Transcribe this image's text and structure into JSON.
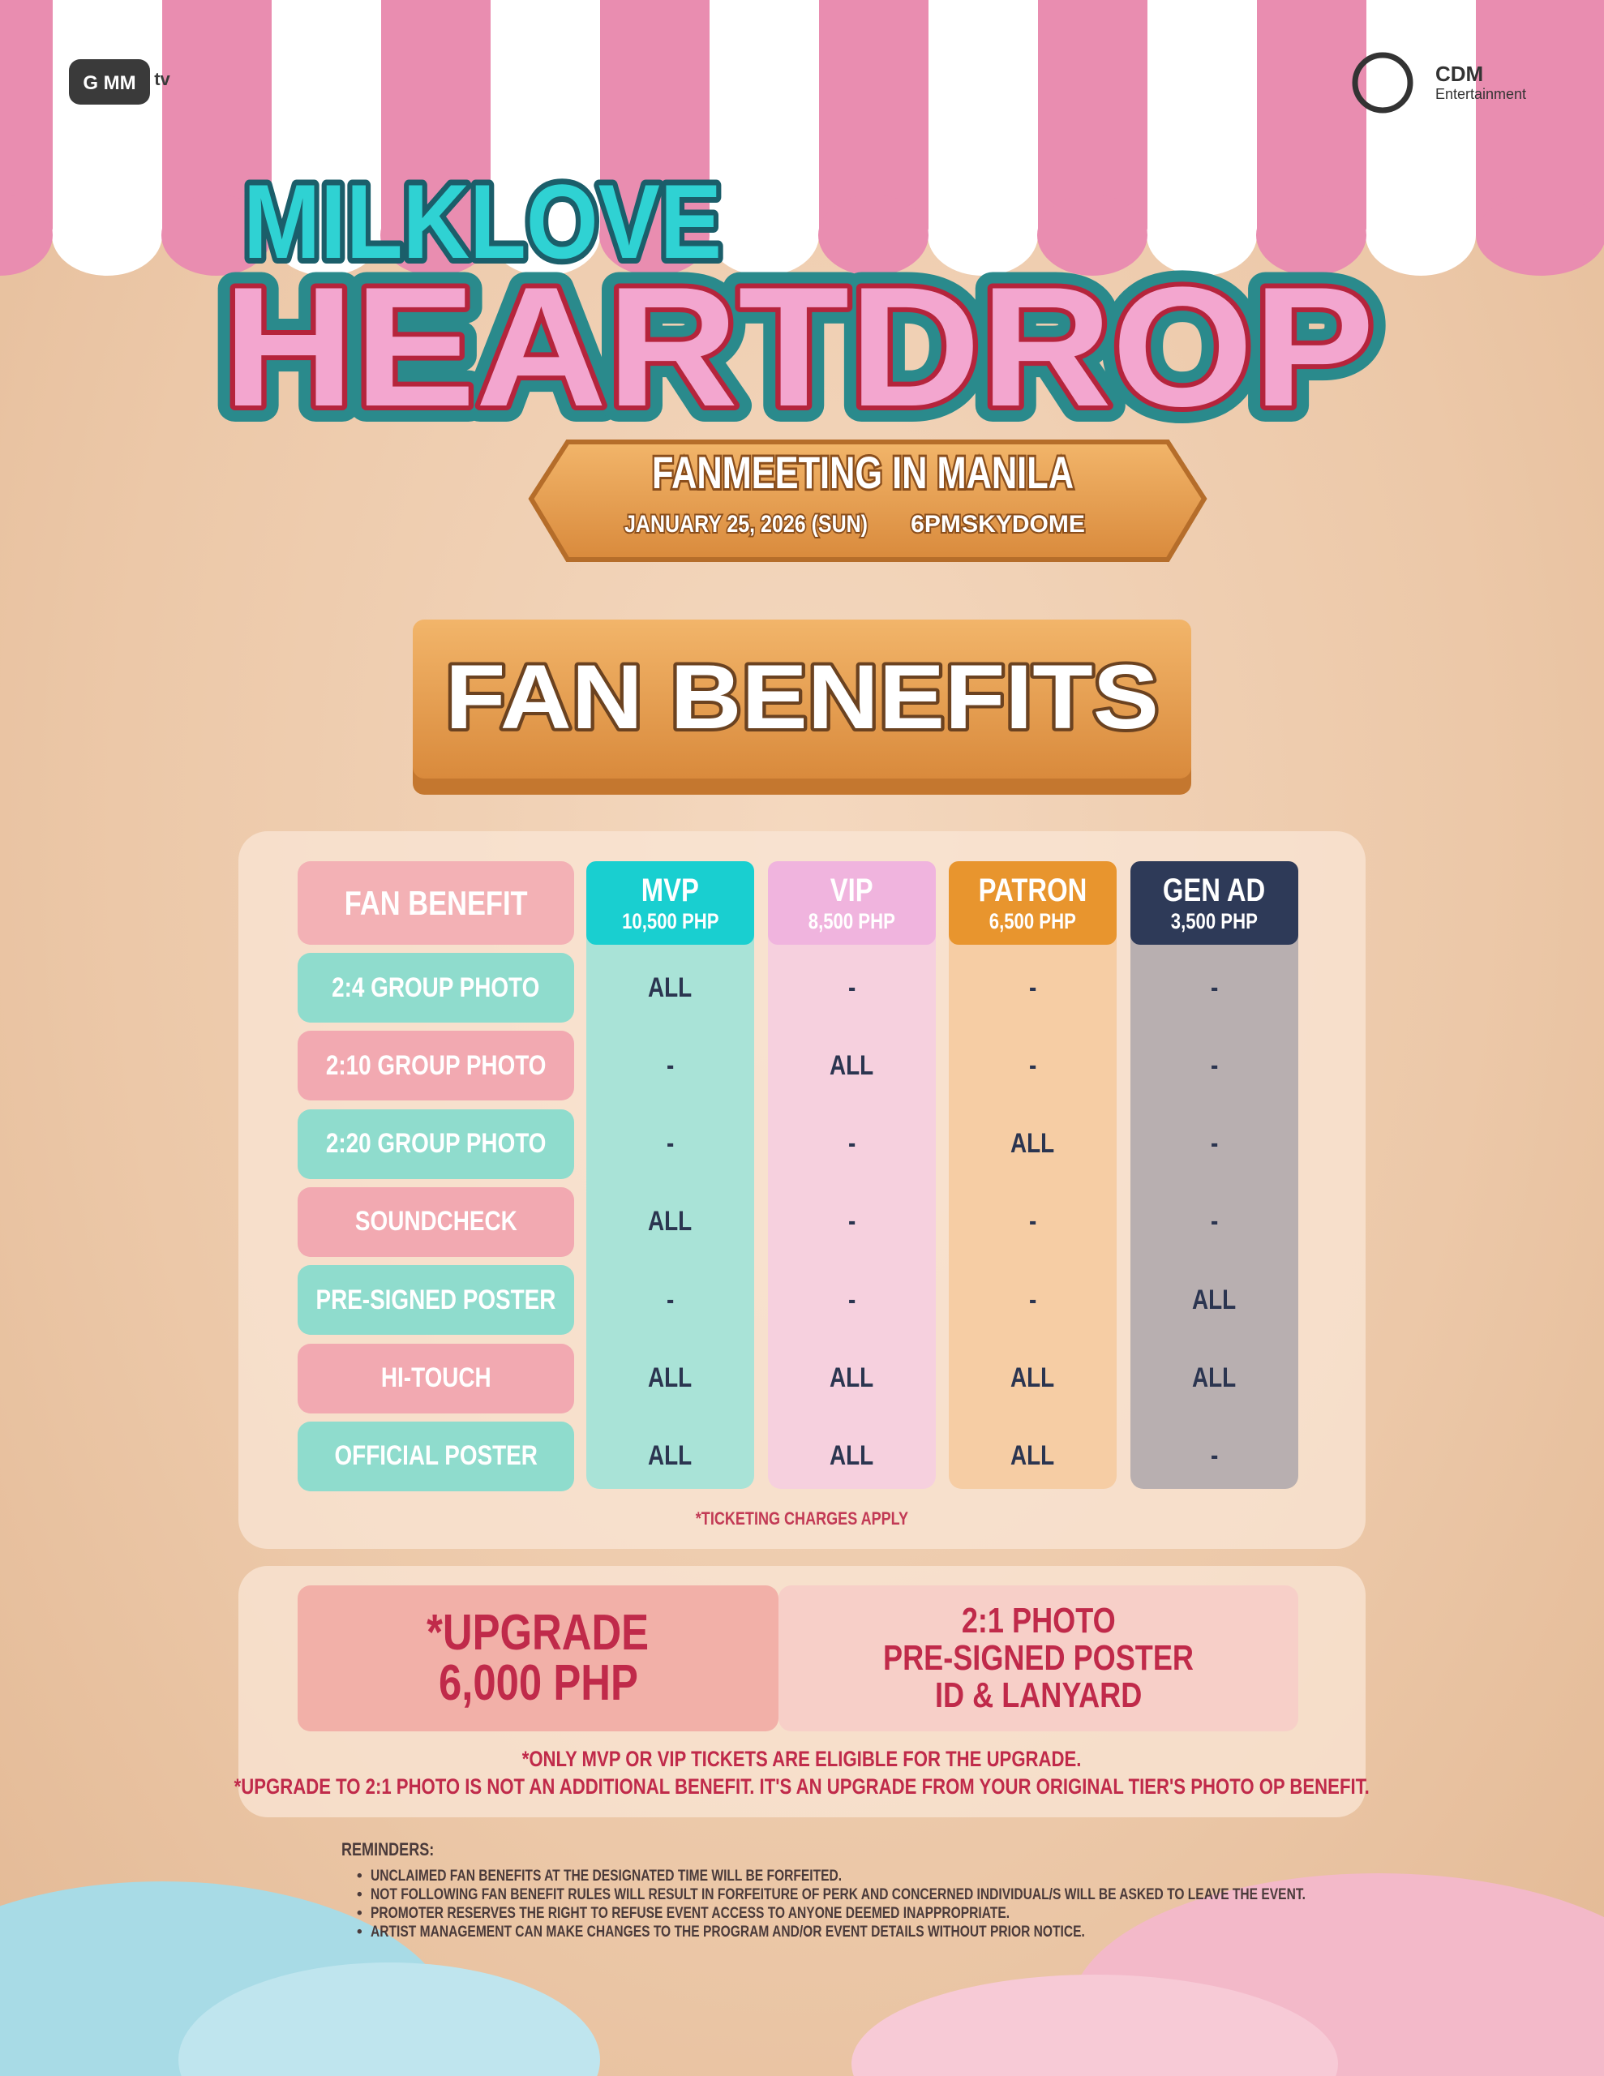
{
  "logos": {
    "left": "G MM",
    "left_sub": "tv",
    "right": "CDM",
    "right_sub": "Entertainment"
  },
  "title": {
    "line1": "MILKLOVE",
    "line2": "HEARTDROP"
  },
  "event": {
    "name": "FANMEETING IN MANILA",
    "date": "JANUARY 25, 2026 (SUN)",
    "time": "6PM",
    "venue": "SKYDOME"
  },
  "section_title": "FAN BENEFITS",
  "table": {
    "header": "FAN BENEFIT",
    "tiers": [
      {
        "name": "MVP",
        "price": "10,500 PHP"
      },
      {
        "name": "VIP",
        "price": "8,500 PHP"
      },
      {
        "name": "PATRON",
        "price": "6,500 PHP"
      },
      {
        "name": "GEN AD",
        "price": "3,500 PHP"
      }
    ],
    "rows": [
      {
        "benefit": "2:4 GROUP PHOTO",
        "cells": [
          "ALL",
          "-",
          "-",
          "-"
        ]
      },
      {
        "benefit": "2:10 GROUP PHOTO",
        "cells": [
          "-",
          "ALL",
          "-",
          "-"
        ]
      },
      {
        "benefit": "2:20 GROUP PHOTO",
        "cells": [
          "-",
          "-",
          "ALL",
          "-"
        ]
      },
      {
        "benefit": "SOUNDCHECK",
        "cells": [
          "ALL",
          "-",
          "-",
          "-"
        ]
      },
      {
        "benefit": "PRE-SIGNED POSTER",
        "cells": [
          "-",
          "-",
          "-",
          "ALL"
        ]
      },
      {
        "benefit": "HI-TOUCH",
        "cells": [
          "ALL",
          "ALL",
          "ALL",
          "ALL"
        ]
      },
      {
        "benefit": "OFFICIAL POSTER",
        "cells": [
          "ALL",
          "ALL",
          "ALL",
          "-"
        ]
      }
    ],
    "note": "*TICKETING CHARGES APPLY"
  },
  "upgrade": {
    "title": "*UPGRADE",
    "price": "6,000 PHP",
    "items": [
      "2:1 PHOTO",
      "PRE-SIGNED POSTER",
      "ID & LANYARD"
    ],
    "notes": [
      "*ONLY MVP OR VIP TICKETS ARE ELIGIBLE FOR THE UPGRADE.",
      "*UPGRADE TO 2:1 PHOTO IS NOT AN ADDITIONAL BENEFIT. IT'S AN UPGRADE FROM YOUR ORIGINAL TIER'S PHOTO OP BENEFIT."
    ]
  },
  "reminders": {
    "title": "REMINDERS:",
    "items": [
      "UNCLAIMED FAN BENEFITS AT THE DESIGNATED TIME WILL BE FORFEITED.",
      "NOT FOLLOWING FAN BENEFIT RULES WILL RESULT IN FORFEITURE OF PERK AND CONCERNED INDIVIDUAL/S WILL BE ASKED TO LEAVE THE EVENT.",
      "PROMOTER RESERVES THE RIGHT TO REFUSE EVENT ACCESS TO ANYONE DEEMED INAPPROPRIATE.",
      "ARTIST MANAGEMENT CAN MAKE CHANGES TO THE PROGRAM AND/OR EVENT DETAILS WITHOUT PRIOR NOTICE."
    ]
  }
}
